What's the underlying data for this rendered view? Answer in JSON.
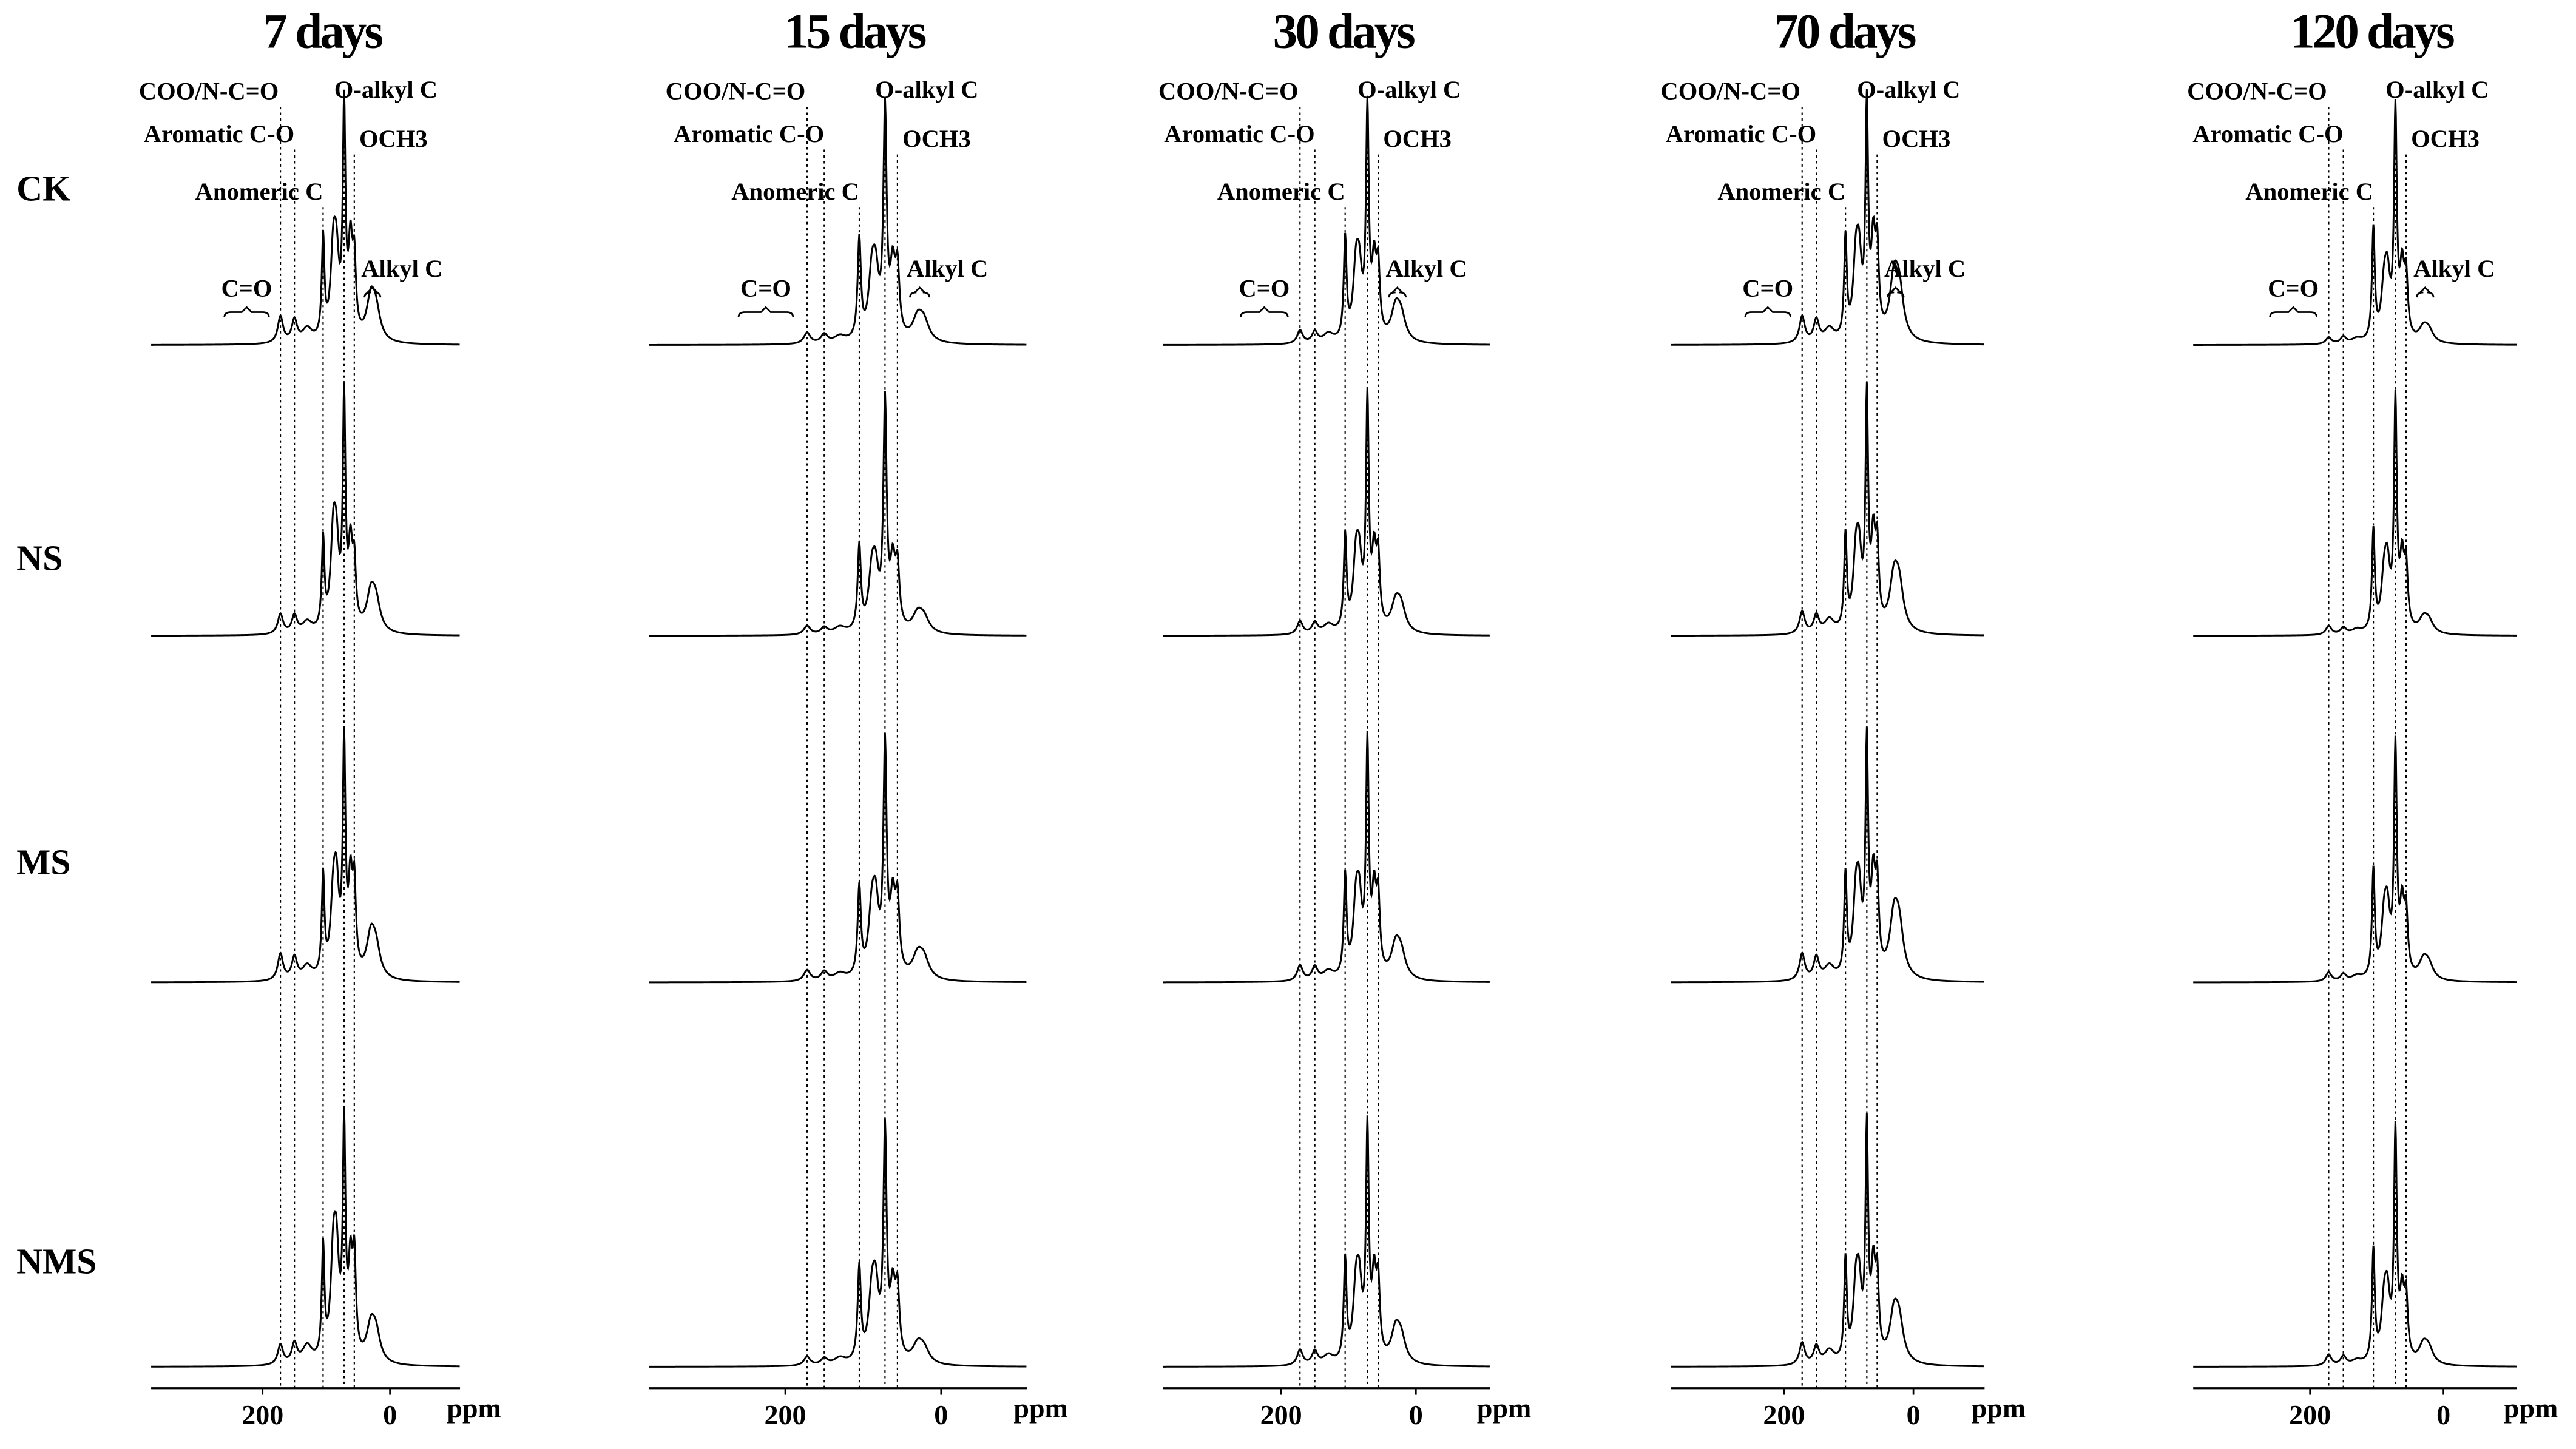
{
  "samples": [
    "CK",
    "NS",
    "MS",
    "NMS"
  ],
  "chart_data": [
    {
      "type": "nmr",
      "title": "7 days",
      "xlim": [
        375,
        -110
      ],
      "xticks": [
        200,
        0
      ],
      "xlabel": "ppm",
      "peak_ppm": [
        172,
        150,
        130,
        105,
        89,
        84,
        72,
        62,
        56,
        30,
        22
      ],
      "series": [
        {
          "values": [
            12,
            10,
            6,
            45,
            35,
            30,
            100,
            40,
            30,
            18,
            12
          ]
        },
        {
          "values": [
            9,
            8,
            5,
            40,
            38,
            30,
            100,
            35,
            25,
            16,
            12
          ]
        },
        {
          "values": [
            12,
            10,
            6,
            45,
            30,
            35,
            100,
            40,
            35,
            18,
            12
          ]
        },
        {
          "values": [
            9,
            9,
            8,
            50,
            40,
            40,
            100,
            40,
            40,
            15,
            12
          ]
        }
      ],
      "assignments": [
        {
          "text": "COO/N-C=O",
          "ppm": 172
        },
        {
          "text": "Aromatic C-O",
          "ppm": 150
        },
        {
          "text": "Anomeric C",
          "ppm": 105
        },
        {
          "text": "O-alkyl C",
          "ppm": 72
        },
        {
          "text": "OCH3",
          "ppm": 56
        }
      ],
      "ranges": [
        {
          "text": "C=O",
          "ppm": [
            260,
            190
          ]
        },
        {
          "text": "Alkyl C",
          "ppm": [
            40,
            15
          ]
        }
      ]
    },
    {
      "type": "nmr",
      "title": "15 days",
      "xlim": [
        375,
        -110
      ],
      "xticks": [
        200,
        0
      ],
      "xlabel": "ppm",
      "peak_ppm": [
        172,
        150,
        130,
        105,
        89,
        84,
        72,
        62,
        56,
        30,
        22
      ],
      "series": [
        {
          "values": [
            5,
            4,
            3,
            45,
            25,
            25,
            100,
            30,
            28,
            10,
            8
          ]
        },
        {
          "values": [
            4,
            3,
            3,
            38,
            22,
            22,
            100,
            28,
            25,
            8,
            6
          ]
        },
        {
          "values": [
            5,
            4,
            3,
            40,
            25,
            28,
            100,
            32,
            30,
            10,
            8
          ]
        },
        {
          "values": [
            4,
            3,
            3,
            42,
            25,
            28,
            100,
            30,
            28,
            8,
            6
          ]
        }
      ],
      "assignments": [
        {
          "text": "COO/N-C=O",
          "ppm": 172
        },
        {
          "text": "Aromatic C-O",
          "ppm": 150
        },
        {
          "text": "Anomeric C",
          "ppm": 105
        },
        {
          "text": "O-alkyl C",
          "ppm": 72
        },
        {
          "text": "OCH3",
          "ppm": 56
        }
      ],
      "ranges": [
        {
          "text": "C=O",
          "ppm": [
            260,
            190
          ]
        },
        {
          "text": "Alkyl C",
          "ppm": [
            40,
            15
          ]
        }
      ]
    },
    {
      "type": "nmr",
      "title": "30 days",
      "xlim": [
        375,
        -110
      ],
      "xticks": [
        200,
        0
      ],
      "xlabel": "ppm",
      "peak_ppm": [
        172,
        150,
        130,
        105,
        89,
        84,
        72,
        62,
        56,
        30,
        22
      ],
      "series": [
        {
          "values": [
            6,
            5,
            4,
            45,
            28,
            25,
            100,
            32,
            28,
            14,
            10
          ]
        },
        {
          "values": [
            6,
            5,
            4,
            42,
            28,
            25,
            100,
            32,
            28,
            12,
            10
          ]
        },
        {
          "values": [
            7,
            6,
            4,
            45,
            28,
            28,
            100,
            35,
            30,
            14,
            10
          ]
        },
        {
          "values": [
            7,
            6,
            4,
            45,
            28,
            28,
            100,
            35,
            30,
            14,
            10
          ]
        }
      ],
      "assignments": [
        {
          "text": "COO/N-C=O",
          "ppm": 172
        },
        {
          "text": "Aromatic C-O",
          "ppm": 150
        },
        {
          "text": "Anomeric C",
          "ppm": 105
        },
        {
          "text": "O-alkyl C",
          "ppm": 72
        },
        {
          "text": "OCH3",
          "ppm": 56
        }
      ],
      "ranges": [
        {
          "text": "C=O",
          "ppm": [
            260,
            190
          ]
        },
        {
          "text": "Alkyl C",
          "ppm": [
            40,
            15
          ]
        }
      ]
    },
    {
      "type": "nmr",
      "title": "70 days",
      "xlim": [
        375,
        -110
      ],
      "xticks": [
        200,
        0
      ],
      "xlabel": "ppm",
      "peak_ppm": [
        172,
        150,
        130,
        105,
        89,
        84,
        72,
        62,
        56,
        30,
        22
      ],
      "series": [
        {
          "values": [
            12,
            10,
            6,
            45,
            30,
            30,
            100,
            40,
            35,
            25,
            20
          ]
        },
        {
          "values": [
            10,
            8,
            6,
            42,
            28,
            28,
            100,
            38,
            32,
            22,
            18
          ]
        },
        {
          "values": [
            12,
            10,
            6,
            45,
            30,
            30,
            100,
            40,
            35,
            25,
            20
          ]
        },
        {
          "values": [
            10,
            8,
            6,
            45,
            28,
            28,
            100,
            38,
            32,
            20,
            16
          ]
        }
      ],
      "assignments": [
        {
          "text": "COO/N-C=O",
          "ppm": 172
        },
        {
          "text": "Aromatic C-O",
          "ppm": 150
        },
        {
          "text": "Anomeric C",
          "ppm": 105
        },
        {
          "text": "O-alkyl C",
          "ppm": 72
        },
        {
          "text": "OCH3",
          "ppm": 56
        }
      ],
      "ranges": [
        {
          "text": "C=O",
          "ppm": [
            260,
            190
          ]
        },
        {
          "text": "Alkyl C",
          "ppm": [
            40,
            15
          ]
        }
      ]
    },
    {
      "type": "nmr",
      "title": "120 days",
      "xlim": [
        375,
        -110
      ],
      "xticks": [
        200,
        0
      ],
      "xlabel": "ppm",
      "peak_ppm": [
        172,
        150,
        130,
        105,
        89,
        84,
        72,
        62,
        56,
        30,
        22
      ],
      "series": [
        {
          "values": [
            3,
            3,
            2,
            50,
            20,
            25,
            100,
            30,
            25,
            6,
            5
          ]
        },
        {
          "values": [
            4,
            3,
            2,
            45,
            20,
            25,
            100,
            30,
            25,
            6,
            5
          ]
        },
        {
          "values": [
            4,
            3,
            2,
            48,
            22,
            25,
            100,
            30,
            25,
            8,
            6
          ]
        },
        {
          "values": [
            5,
            4,
            2,
            50,
            22,
            25,
            100,
            28,
            25,
            8,
            6
          ]
        }
      ],
      "assignments": [
        {
          "text": "COO/N-C=O",
          "ppm": 172
        },
        {
          "text": "Aromatic C-O",
          "ppm": 150
        },
        {
          "text": "Anomeric C",
          "ppm": 105
        },
        {
          "text": "O-alkyl C",
          "ppm": 72
        },
        {
          "text": "OCH3",
          "ppm": 56
        }
      ],
      "ranges": [
        {
          "text": "C=O",
          "ppm": [
            260,
            190
          ]
        },
        {
          "text": "Alkyl C",
          "ppm": [
            40,
            15
          ]
        }
      ]
    }
  ]
}
